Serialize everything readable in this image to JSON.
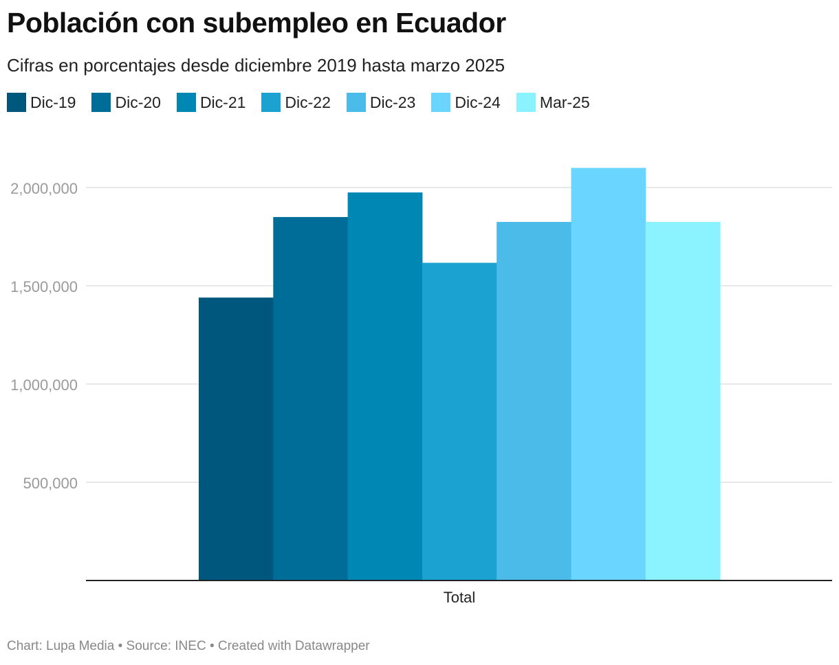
{
  "title": "Población con subempleo en Ecuador",
  "subtitle": "Cifras en porcentajes desde diciembre 2019 hasta marzo 2025",
  "footer": "Chart: Lupa Media • Source: INEC • Created with Datawrapper",
  "chart_data": {
    "type": "bar",
    "title": "Población con subempleo en Ecuador",
    "subtitle": "Cifras en porcentajes desde diciembre 2019 hasta marzo 2025",
    "categories": [
      "Total"
    ],
    "xlabel": "",
    "ylabel": "",
    "ylim": [
      0,
      2000000
    ],
    "yticks": [
      500000,
      1000000,
      1500000,
      2000000
    ],
    "ytick_labels": [
      "500,000",
      "1,000,000",
      "1,500,000",
      "2,000,000"
    ],
    "grid": true,
    "legend_position": "top-left",
    "series": [
      {
        "name": "Dic-19",
        "color": "#00577d",
        "values": [
          1440000
        ]
      },
      {
        "name": "Dic-20",
        "color": "#006d99",
        "values": [
          1850000
        ]
      },
      {
        "name": "Dic-21",
        "color": "#0087b3",
        "values": [
          1975000
        ]
      },
      {
        "name": "Dic-22",
        "color": "#1ba2d0",
        "values": [
          1617000
        ]
      },
      {
        "name": "Dic-23",
        "color": "#4bbbe9",
        "values": [
          1825000
        ]
      },
      {
        "name": "Dic-24",
        "color": "#6ad6ff",
        "values": [
          2100000
        ]
      },
      {
        "name": "Mar-25",
        "color": "#8af3ff",
        "values": [
          1825000
        ]
      }
    ]
  }
}
